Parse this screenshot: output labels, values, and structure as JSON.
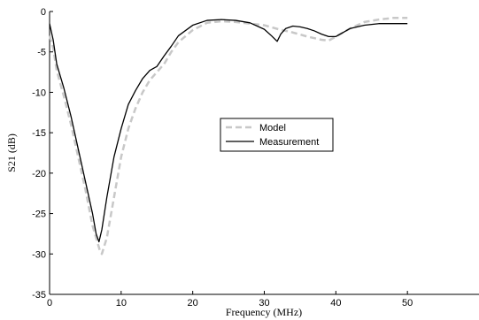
{
  "chart_data": {
    "type": "line",
    "title": "",
    "xlabel": "Frequency (MHz)",
    "ylabel": "S21 (dB)",
    "xlim": [
      0,
      60
    ],
    "ylim": [
      -35,
      0
    ],
    "xticks": [
      0,
      10,
      20,
      30,
      40,
      50
    ],
    "yticks": [
      0,
      -5,
      -10,
      -15,
      -20,
      -25,
      -30,
      -35
    ],
    "grid": false,
    "legend_position": "center-right",
    "series": [
      {
        "name": "Model",
        "style": "dashed",
        "color": "#c8c8c8",
        "x": [
          0,
          0.5,
          1,
          2,
          3,
          4,
          5,
          6,
          7,
          7.3,
          8,
          9,
          10,
          11,
          12,
          13,
          14,
          15,
          16,
          17,
          18,
          20,
          22,
          24,
          26,
          28,
          30,
          32,
          34,
          36,
          38,
          39,
          40,
          42,
          44,
          46,
          48,
          50
        ],
        "y": [
          -3,
          -4.5,
          -7.3,
          -10.5,
          -14,
          -18,
          -22,
          -26.5,
          -29.5,
          -30,
          -28,
          -23,
          -18,
          -14.5,
          -12,
          -10,
          -8.5,
          -7.5,
          -6.5,
          -5,
          -3.8,
          -2.3,
          -1.4,
          -1.2,
          -1.3,
          -1.5,
          -1.7,
          -2.2,
          -2.6,
          -3.1,
          -3.5,
          -3.6,
          -3.1,
          -2.1,
          -1.3,
          -1.0,
          -0.8,
          -0.8
        ]
      },
      {
        "name": "Measurement",
        "style": "solid",
        "color": "#000000",
        "x": [
          0,
          0.5,
          1,
          2,
          3,
          4,
          5,
          6,
          6.5,
          6.9,
          7.3,
          8,
          9,
          10,
          11,
          12,
          13,
          14,
          15,
          16,
          17,
          18,
          20,
          22,
          24,
          26,
          28,
          30,
          31,
          31.8,
          32.3,
          33,
          34,
          35,
          36,
          37,
          38,
          39,
          40,
          41,
          42,
          44,
          46,
          48,
          50
        ],
        "y": [
          -1.5,
          -3.5,
          -6.5,
          -9.5,
          -13,
          -17,
          -21,
          -25,
          -27.5,
          -28.5,
          -27,
          -23,
          -18,
          -14.5,
          -11.5,
          -9.8,
          -8.3,
          -7.3,
          -6.8,
          -5.5,
          -4.3,
          -3.0,
          -1.7,
          -1.1,
          -1.0,
          -1.1,
          -1.4,
          -2.2,
          -3.0,
          -3.7,
          -2.8,
          -2.1,
          -1.8,
          -1.9,
          -2.1,
          -2.4,
          -2.8,
          -3.1,
          -3.1,
          -2.6,
          -2.1,
          -1.7,
          -1.5,
          -1.5,
          -1.5
        ]
      }
    ]
  }
}
